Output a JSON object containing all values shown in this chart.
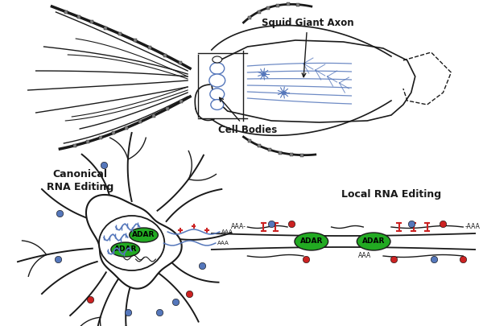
{
  "background_color": "#ffffff",
  "squid_giant_axon_label": "Squid Giant Axon",
  "cell_bodies_label": "Cell Bodies",
  "canonical_label": "Canonical\nRNA Editing",
  "local_label": "Local RNA Editing",
  "adar_label": "ADAR",
  "blue_color": "#5577bb",
  "red_color": "#cc2222",
  "green_color": "#22aa22",
  "black_color": "#1a1a1a",
  "fig_width": 6.0,
  "fig_height": 4.05,
  "dpi": 100
}
